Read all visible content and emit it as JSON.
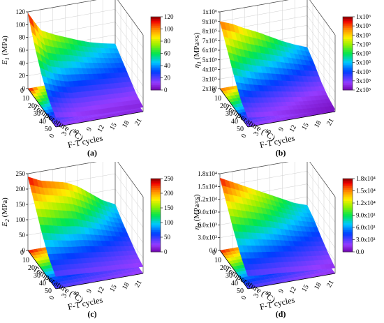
{
  "captions": [
    "(a)",
    "(b)",
    "(c)",
    "(d)"
  ],
  "panels": [
    {
      "id": "a",
      "zlabel": "E",
      "zsub": "1",
      "zunit": " (MPa)",
      "zticks": [
        "0",
        "20",
        "40",
        "60",
        "80",
        "100",
        "120"
      ],
      "cbticks": [
        "0",
        "20",
        "40",
        "60",
        "80",
        "100",
        "120"
      ],
      "xlabel": "Temperature (°C)",
      "xticks": [
        "0",
        "10",
        "20",
        "30",
        "40",
        "50"
      ],
      "ylabel": "F-T cycles",
      "yticks": [
        "0",
        "3",
        "6",
        "9",
        "12",
        "15",
        "18",
        "21"
      ]
    },
    {
      "id": "b",
      "zlabel": "η",
      "zsub": "1",
      "zunit": " (MPa×s)",
      "zticks": [
        "2x10⁵",
        "3x10⁵",
        "4x10⁵",
        "5x10⁵",
        "6x10⁵",
        "7x10⁵",
        "8x10⁵",
        "9x10⁵",
        "1x10⁶"
      ],
      "cbticks": [
        "2x10⁵",
        "3x10⁵",
        "4x10⁵",
        "5x10⁵",
        "6x10⁵",
        "7x10⁵",
        "8x10⁵",
        "9x10⁵",
        "1x10⁶"
      ],
      "xlabel": "Temperature (°C)",
      "xticks": [
        "0",
        "10",
        "20",
        "30",
        "40",
        "50"
      ],
      "ylabel": "F-T cycles",
      "yticks": [
        "0",
        "3",
        "6",
        "9",
        "12",
        "15",
        "18",
        "21"
      ]
    },
    {
      "id": "c",
      "zlabel": "E",
      "zsub": "2",
      "zunit": " (MPa)",
      "zticks": [
        "0",
        "50",
        "100",
        "150",
        "200",
        "250"
      ],
      "cbticks": [
        "0",
        "50",
        "100",
        "150",
        "200",
        "250"
      ],
      "xlabel": "Temperature (°C)",
      "xticks": [
        "0",
        "10",
        "20",
        "30",
        "40",
        "50"
      ],
      "ylabel": "F-T cycles",
      "yticks": [
        "0",
        "3",
        "6",
        "9",
        "12",
        "15",
        "18",
        "21"
      ]
    },
    {
      "id": "d",
      "zlabel": "η",
      "zsub": "2",
      "zunit": " (MPa×s)",
      "zticks": [
        "0.0",
        "3.0x10³",
        "6.0x10³",
        "9.0x10³",
        "1.2x10⁴",
        "1.5x10⁴",
        "1.8x10⁴"
      ],
      "cbticks": [
        "0.0",
        "3.0x10³",
        "6.0x10³",
        "9.0x10³",
        "1.2x10⁴",
        "1.5x10⁴",
        "1.8x10⁴"
      ],
      "xlabel": "Temperature (°C)",
      "xticks": [
        "0",
        "10",
        "20",
        "30",
        "40",
        "50"
      ],
      "ylabel": "F-T cycles",
      "yticks": [
        "0",
        "3",
        "6",
        "9",
        "12",
        "15",
        "18",
        "21"
      ]
    }
  ],
  "chart_data": [
    {
      "type": "surface3d",
      "panel": "a",
      "x_temperature": [
        10,
        20,
        30,
        40,
        50
      ],
      "y_ft_cycles": [
        0,
        3,
        6,
        9,
        12,
        15,
        18,
        21
      ],
      "zlim": [
        0,
        120
      ],
      "z": [
        [
          118,
          88,
          78,
          70,
          62,
          55,
          50,
          46
        ],
        [
          80,
          62,
          56,
          52,
          46,
          42,
          38,
          35
        ],
        [
          50,
          40,
          34,
          32,
          30,
          28,
          26,
          24
        ],
        [
          28,
          22,
          18,
          17,
          16,
          15,
          14,
          13
        ],
        [
          15,
          12,
          10,
          9,
          8,
          8,
          7,
          7
        ]
      ]
    },
    {
      "type": "surface3d",
      "panel": "b",
      "x_temperature": [
        10,
        20,
        30,
        40,
        50
      ],
      "y_ft_cycles": [
        0,
        3,
        6,
        9,
        12,
        15,
        18,
        21
      ],
      "zlim": [
        200000,
        1000000
      ],
      "z": [
        [
          900000,
          850000,
          780000,
          720000,
          650000,
          580000,
          520000,
          470000
        ],
        [
          720000,
          650000,
          600000,
          560000,
          520000,
          480000,
          440000,
          400000
        ],
        [
          540000,
          490000,
          450000,
          420000,
          390000,
          360000,
          330000,
          310000
        ],
        [
          380000,
          350000,
          330000,
          310000,
          290000,
          270000,
          260000,
          250000
        ],
        [
          300000,
          280000,
          270000,
          260000,
          250000,
          240000,
          230000,
          220000
        ]
      ]
    },
    {
      "type": "surface3d",
      "panel": "c",
      "x_temperature": [
        10,
        20,
        30,
        40,
        50
      ],
      "y_ft_cycles": [
        0,
        3,
        6,
        9,
        12,
        15,
        18,
        21
      ],
      "zlim": [
        0,
        250
      ],
      "z": [
        [
          240,
          220,
          210,
          200,
          180,
          150,
          120,
          100
        ],
        [
          180,
          170,
          160,
          150,
          130,
          110,
          90,
          75
        ],
        [
          120,
          110,
          100,
          95,
          85,
          75,
          65,
          55
        ],
        [
          70,
          65,
          60,
          55,
          50,
          45,
          40,
          35
        ],
        [
          40,
          38,
          35,
          32,
          30,
          28,
          25,
          22
        ]
      ]
    },
    {
      "type": "surface3d",
      "panel": "d",
      "x_temperature": [
        10,
        20,
        30,
        40,
        50
      ],
      "y_ft_cycles": [
        0,
        3,
        6,
        9,
        12,
        15,
        18,
        21
      ],
      "zlim": [
        0,
        18000
      ],
      "z": [
        [
          17000,
          15500,
          14000,
          12500,
          11000,
          9500,
          8000,
          7000
        ],
        [
          13000,
          12000,
          11000,
          10000,
          8800,
          7600,
          6600,
          5800
        ],
        [
          9000,
          8200,
          7500,
          6800,
          6000,
          5200,
          4600,
          4000
        ],
        [
          5500,
          5000,
          4600,
          4200,
          3800,
          3300,
          2900,
          2500
        ],
        [
          3000,
          2700,
          2500,
          2300,
          2000,
          1800,
          1500,
          1300
        ]
      ]
    }
  ]
}
